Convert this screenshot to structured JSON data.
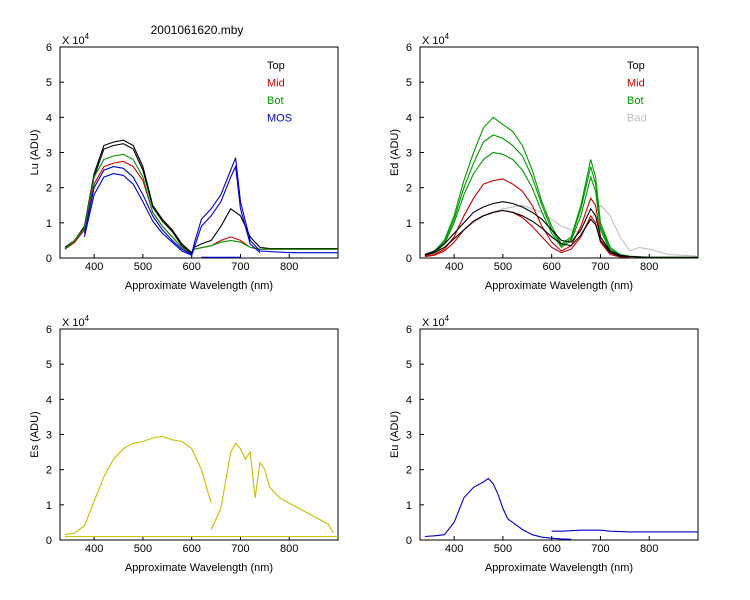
{
  "figure": {
    "title": "2001061620.mby",
    "background": "#ffffff"
  },
  "chart_data": [
    {
      "id": "lu",
      "type": "line",
      "ylabel": "Lu (ADU)",
      "xlabel": "Approximate Wavelength (nm)",
      "multiplier_label": "X 10",
      "multiplier_exp": "4",
      "xlim": [
        330,
        900
      ],
      "ylim": [
        0,
        6
      ],
      "xticks": [
        400,
        500,
        600,
        700,
        800
      ],
      "yticks": [
        0,
        1,
        2,
        3,
        4,
        5,
        6
      ],
      "legend": [
        {
          "label": "Top",
          "color": "#000000"
        },
        {
          "label": "Mid",
          "color": "#cc0000"
        },
        {
          "label": "Bot",
          "color": "#009900"
        },
        {
          "label": "MOS",
          "color": "#0000cc"
        }
      ],
      "series": [
        {
          "name": "Top",
          "color": "#000000",
          "x": [
            340,
            360,
            380,
            400,
            420,
            440,
            460,
            480,
            500,
            520,
            540,
            560,
            580,
            600,
            605,
            620,
            640,
            660,
            680,
            700,
            720,
            740,
            760,
            800,
            900
          ],
          "y": [
            0.3,
            0.5,
            0.9,
            2.4,
            3.2,
            3.3,
            3.35,
            3.2,
            2.6,
            1.5,
            1.1,
            0.8,
            0.4,
            0.15,
            0.3,
            0.4,
            0.5,
            0.9,
            1.4,
            1.2,
            0.6,
            0.3,
            0.27,
            0.27,
            0.27
          ]
        },
        {
          "name": "Top",
          "color": "#000000",
          "x": [
            340,
            360,
            380,
            400,
            420,
            440,
            460,
            480,
            500,
            520,
            540,
            560,
            580,
            600
          ],
          "y": [
            0.25,
            0.45,
            0.85,
            2.3,
            3.1,
            3.2,
            3.25,
            3.1,
            2.5,
            1.45,
            1.05,
            0.75,
            0.35,
            0.12
          ]
        },
        {
          "name": "Mid",
          "color": "#cc0000",
          "x": [
            340,
            360,
            380,
            400,
            420,
            440,
            460,
            480,
            500,
            520,
            540,
            560,
            580,
            600,
            605,
            640,
            660,
            680,
            700,
            720,
            740,
            800,
            900
          ],
          "y": [
            0.25,
            0.45,
            0.8,
            2.1,
            2.6,
            2.7,
            2.75,
            2.6,
            2.2,
            1.3,
            0.9,
            0.6,
            0.3,
            0.1,
            0.25,
            0.35,
            0.5,
            0.6,
            0.5,
            0.3,
            0.25,
            0.25,
            0.25
          ]
        },
        {
          "name": "Bot",
          "color": "#009900",
          "x": [
            340,
            360,
            380,
            400,
            420,
            440,
            460,
            480,
            500,
            520,
            540,
            560,
            580,
            600,
            605,
            640,
            660,
            680,
            700,
            720,
            740,
            800,
            900
          ],
          "y": [
            0.25,
            0.5,
            0.85,
            2.3,
            2.8,
            2.9,
            2.95,
            2.8,
            2.3,
            1.3,
            0.9,
            0.6,
            0.3,
            0.1,
            0.25,
            0.35,
            0.45,
            0.5,
            0.45,
            0.3,
            0.25,
            0.25,
            0.25
          ]
        },
        {
          "name": "MOS",
          "color": "#0000cc",
          "x": [
            380,
            400,
            420,
            440,
            460,
            480,
            500,
            520,
            540,
            560,
            580,
            600,
            605,
            620,
            640,
            660,
            680,
            690,
            700,
            720,
            740,
            800,
            900
          ],
          "y": [
            0.7,
            2.0,
            2.5,
            2.6,
            2.55,
            2.3,
            1.8,
            1.2,
            0.8,
            0.5,
            0.25,
            0.1,
            0.4,
            1.1,
            1.4,
            1.8,
            2.5,
            2.85,
            1.6,
            0.5,
            0.2,
            0.15,
            0.15
          ]
        },
        {
          "name": "MOS",
          "color": "#0000cc",
          "x": [
            380,
            400,
            420,
            440,
            460,
            480,
            500,
            520,
            540,
            560,
            580,
            600,
            620,
            640,
            660,
            680,
            690,
            700,
            720,
            740
          ],
          "y": [
            0.6,
            1.8,
            2.3,
            2.4,
            2.35,
            2.1,
            1.6,
            1.05,
            0.7,
            0.45,
            0.2,
            0.08,
            0.9,
            1.2,
            1.6,
            2.3,
            2.6,
            1.4,
            0.4,
            0.15
          ]
        },
        {
          "name": "MOS",
          "color": "#0000cc",
          "x": [
            620,
            700
          ],
          "y": [
            0.02,
            0.02
          ]
        }
      ]
    },
    {
      "id": "ed",
      "type": "line",
      "ylabel": "Ed  (ADU)",
      "xlabel": "Approximate Wavelength (nm)",
      "multiplier_label": "X 10",
      "multiplier_exp": "4",
      "xlim": [
        330,
        900
      ],
      "ylim": [
        0,
        6
      ],
      "xticks": [
        400,
        500,
        600,
        700,
        800
      ],
      "yticks": [
        0,
        1,
        2,
        3,
        4,
        5,
        6
      ],
      "legend": [
        {
          "label": "Top",
          "color": "#000000"
        },
        {
          "label": "Mid",
          "color": "#cc0000"
        },
        {
          "label": "Bot",
          "color": "#009900"
        },
        {
          "label": "Bad",
          "color": "#c0c0c0"
        }
      ],
      "series": [
        {
          "name": "Bad",
          "color": "#c0c0c0",
          "x": [
            340,
            380,
            420,
            460,
            500,
            540,
            580,
            620,
            660,
            680,
            700,
            720,
            740,
            760,
            780,
            800,
            840,
            900
          ],
          "y": [
            0.1,
            0.3,
            0.8,
            1.2,
            1.4,
            1.5,
            1.3,
            0.9,
            0.7,
            1.1,
            1.5,
            1.2,
            0.6,
            0.2,
            0.3,
            0.25,
            0.1,
            0.05
          ]
        },
        {
          "name": "Bot",
          "color": "#009900",
          "x": [
            340,
            360,
            380,
            400,
            420,
            440,
            460,
            480,
            500,
            520,
            540,
            560,
            580,
            600,
            620,
            640,
            660,
            680,
            690,
            700,
            720,
            740,
            760,
            800,
            900
          ],
          "y": [
            0.1,
            0.2,
            0.5,
            1.2,
            2.2,
            3.0,
            3.7,
            4.0,
            3.8,
            3.6,
            3.2,
            2.5,
            1.6,
            0.9,
            0.4,
            0.6,
            1.5,
            2.8,
            2.3,
            1.0,
            0.3,
            0.1,
            0.05,
            0.02,
            0.02
          ]
        },
        {
          "name": "Bot",
          "color": "#009900",
          "x": [
            340,
            360,
            380,
            400,
            420,
            440,
            460,
            480,
            500,
            520,
            540,
            560,
            580,
            600,
            620,
            640,
            660,
            680,
            690,
            700,
            720,
            740,
            760
          ],
          "y": [
            0.1,
            0.18,
            0.45,
            1.1,
            2.0,
            2.7,
            3.3,
            3.5,
            3.4,
            3.2,
            2.9,
            2.3,
            1.5,
            0.8,
            0.35,
            0.55,
            1.4,
            2.6,
            2.1,
            0.9,
            0.25,
            0.08,
            0.04
          ]
        },
        {
          "name": "Bot",
          "color": "#009900",
          "x": [
            340,
            360,
            380,
            400,
            420,
            440,
            460,
            480,
            500,
            520,
            540,
            560,
            580,
            600,
            620,
            640,
            660,
            680,
            690,
            700,
            720,
            740,
            760
          ],
          "y": [
            0.08,
            0.15,
            0.4,
            1.0,
            1.8,
            2.4,
            2.8,
            3.0,
            2.95,
            2.8,
            2.5,
            2.0,
            1.3,
            0.7,
            0.3,
            0.5,
            1.2,
            2.3,
            1.9,
            0.8,
            0.2,
            0.06,
            0.03
          ]
        },
        {
          "name": "Mid",
          "color": "#cc0000",
          "x": [
            340,
            360,
            380,
            400,
            420,
            440,
            460,
            480,
            500,
            520,
            540,
            560,
            580,
            600,
            620,
            640,
            660,
            680,
            690,
            700,
            720,
            740,
            760
          ],
          "y": [
            0.05,
            0.1,
            0.25,
            0.6,
            1.2,
            1.7,
            2.1,
            2.2,
            2.25,
            2.1,
            1.9,
            1.5,
            0.9,
            0.45,
            0.2,
            0.35,
            0.9,
            1.7,
            1.5,
            0.6,
            0.15,
            0.05,
            0.02
          ]
        },
        {
          "name": "Mid",
          "color": "#cc0000",
          "x": [
            340,
            360,
            380,
            400,
            420,
            440,
            460,
            480,
            500,
            520,
            540,
            560,
            580,
            600,
            620,
            640,
            660,
            680,
            690,
            700,
            720,
            740,
            760
          ],
          "y": [
            0.04,
            0.08,
            0.2,
            0.45,
            0.8,
            1.05,
            1.2,
            1.3,
            1.35,
            1.3,
            1.15,
            0.9,
            0.6,
            0.3,
            0.15,
            0.25,
            0.6,
            1.2,
            1.0,
            0.45,
            0.1,
            0.03,
            0.02
          ]
        },
        {
          "name": "Top",
          "color": "#000000",
          "x": [
            340,
            360,
            380,
            400,
            420,
            440,
            460,
            480,
            500,
            520,
            540,
            560,
            580,
            600,
            620,
            640,
            660,
            680,
            690,
            700,
            720,
            740,
            760,
            800,
            900
          ],
          "y": [
            0.1,
            0.2,
            0.4,
            0.7,
            1.0,
            1.3,
            1.45,
            1.55,
            1.6,
            1.55,
            1.45,
            1.3,
            1.1,
            0.8,
            0.5,
            0.45,
            0.8,
            1.4,
            1.2,
            0.6,
            0.2,
            0.08,
            0.04,
            0.02,
            0.02
          ]
        },
        {
          "name": "Top",
          "color": "#000000",
          "x": [
            340,
            360,
            380,
            400,
            420,
            440,
            460,
            480,
            500,
            520,
            540,
            560,
            580,
            600,
            620,
            640,
            660,
            680,
            690,
            700,
            720,
            740,
            760
          ],
          "y": [
            0.08,
            0.15,
            0.3,
            0.55,
            0.8,
            1.05,
            1.2,
            1.3,
            1.35,
            1.3,
            1.2,
            1.05,
            0.85,
            0.6,
            0.4,
            0.35,
            0.65,
            1.1,
            0.95,
            0.5,
            0.15,
            0.05,
            0.03
          ]
        }
      ]
    },
    {
      "id": "es",
      "type": "line",
      "ylabel": "Es  (ADU)",
      "xlabel": "Approximate Wavelength (nm)",
      "multiplier_label": "X 10",
      "multiplier_exp": "4",
      "xlim": [
        330,
        900
      ],
      "ylim": [
        0,
        6
      ],
      "xticks": [
        400,
        500,
        600,
        700,
        800
      ],
      "yticks": [
        0,
        1,
        2,
        3,
        4,
        5,
        6
      ],
      "legend": [],
      "series": [
        {
          "name": "Es",
          "color": "#c8c000",
          "x": [
            340,
            360,
            380,
            400,
            420,
            440,
            460,
            480,
            500,
            520,
            540,
            560,
            580,
            600,
            620,
            640
          ],
          "y": [
            0.15,
            0.2,
            0.4,
            1.1,
            1.8,
            2.3,
            2.6,
            2.75,
            2.8,
            2.9,
            2.95,
            2.85,
            2.8,
            2.6,
            2.0,
            1.05
          ]
        },
        {
          "name": "Es",
          "color": "#c8c000",
          "x": [
            640,
            660,
            670,
            680,
            690,
            700,
            710,
            720,
            730,
            740,
            750,
            760,
            780,
            800,
            820,
            840,
            860,
            880,
            890
          ],
          "y": [
            0.3,
            0.9,
            1.7,
            2.5,
            2.75,
            2.6,
            2.3,
            2.5,
            1.2,
            2.2,
            2.0,
            1.5,
            1.2,
            1.05,
            0.9,
            0.75,
            0.6,
            0.45,
            0.2
          ]
        },
        {
          "name": "Es",
          "color": "#c8c000",
          "x": [
            340,
            900
          ],
          "y": [
            0.1,
            0.1
          ]
        }
      ]
    },
    {
      "id": "eu",
      "type": "line",
      "ylabel": "Eu  (ADU)",
      "xlabel": "Approximate Wavelength (nm)",
      "multiplier_label": "X 10",
      "multiplier_exp": "4",
      "xlim": [
        330,
        900
      ],
      "ylim": [
        0,
        6
      ],
      "xticks": [
        400,
        500,
        600,
        700,
        800
      ],
      "yticks": [
        0,
        1,
        2,
        3,
        4,
        5,
        6
      ],
      "legend": [],
      "series": [
        {
          "name": "Eu",
          "color": "#0000cc",
          "x": [
            340,
            360,
            380,
            400,
            420,
            440,
            460,
            470,
            480,
            490,
            500,
            510,
            520,
            540,
            560,
            580,
            600,
            620,
            640
          ],
          "y": [
            0.1,
            0.12,
            0.15,
            0.5,
            1.2,
            1.5,
            1.65,
            1.75,
            1.6,
            1.3,
            0.9,
            0.6,
            0.5,
            0.3,
            0.15,
            0.08,
            0.05,
            0.03,
            0.02
          ]
        },
        {
          "name": "Eu",
          "color": "#0000cc",
          "x": [
            600,
            620,
            660,
            700,
            720,
            760,
            800,
            840,
            900
          ],
          "y": [
            0.25,
            0.25,
            0.28,
            0.28,
            0.25,
            0.23,
            0.23,
            0.23,
            0.23
          ]
        }
      ]
    }
  ]
}
